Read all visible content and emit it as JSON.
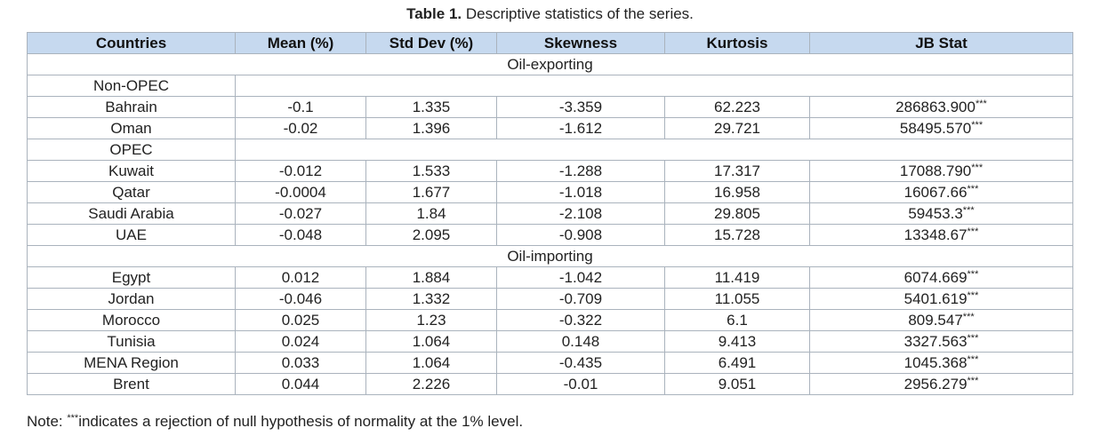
{
  "title": {
    "label": "Table 1.",
    "text": "Descriptive statistics of the series."
  },
  "table": {
    "header": [
      "Countries",
      "Mean (%)",
      "Std Dev (%)",
      "Skewness",
      "Kurtosis",
      "JB Stat"
    ],
    "sections": [
      {
        "title": "Oil-exporting",
        "groups": [
          {
            "title": "Non-OPEC",
            "rows": [
              [
                "Bahrain",
                "-0.1",
                "1.335",
                "-3.359",
                "62.223",
                "286863.900",
                "***"
              ],
              [
                "Oman",
                "-0.02",
                "1.396",
                "-1.612",
                "29.721",
                "58495.570",
                "***"
              ]
            ]
          },
          {
            "title": "OPEC",
            "rows": [
              [
                "Kuwait",
                "-0.012",
                "1.533",
                "-1.288",
                "17.317",
                "17088.790",
                "***"
              ],
              [
                "Qatar",
                "-0.0004",
                "1.677",
                "-1.018",
                "16.958",
                "16067.66",
                "***"
              ],
              [
                "Saudi Arabia",
                "-0.027",
                "1.84",
                "-2.108",
                "29.805",
                "59453.3",
                "***"
              ],
              [
                "UAE",
                "-0.048",
                "2.095",
                "-0.908",
                "15.728",
                "13348.67",
                "***"
              ]
            ]
          }
        ]
      },
      {
        "title": "Oil-importing",
        "groups": [
          {
            "rows": [
              [
                "Egypt",
                "0.012",
                "1.884",
                "-1.042",
                "11.419",
                "6074.669",
                "***"
              ],
              [
                "Jordan",
                "-0.046",
                "1.332",
                "-0.709",
                "11.055",
                "5401.619",
                "***"
              ],
              [
                "Morocco",
                "0.025",
                "1.23",
                "-0.322",
                "6.1",
                "809.547",
                "***"
              ],
              [
                "Tunisia",
                "0.024",
                "1.064",
                "0.148",
                "9.413",
                "3327.563",
                "***"
              ],
              [
                "MENA Region",
                "0.033",
                "1.064",
                "-0.435",
                "6.491",
                "1045.368",
                "***"
              ],
              [
                "Brent",
                "0.044",
                "2.226",
                "-0.01",
                "9.051",
                "2956.279",
                "***"
              ]
            ]
          }
        ]
      }
    ]
  },
  "note": {
    "prefix": "Note: ",
    "sig": "***",
    "text": "indicates a rejection of null hypothesis of normality at the 1% level."
  }
}
